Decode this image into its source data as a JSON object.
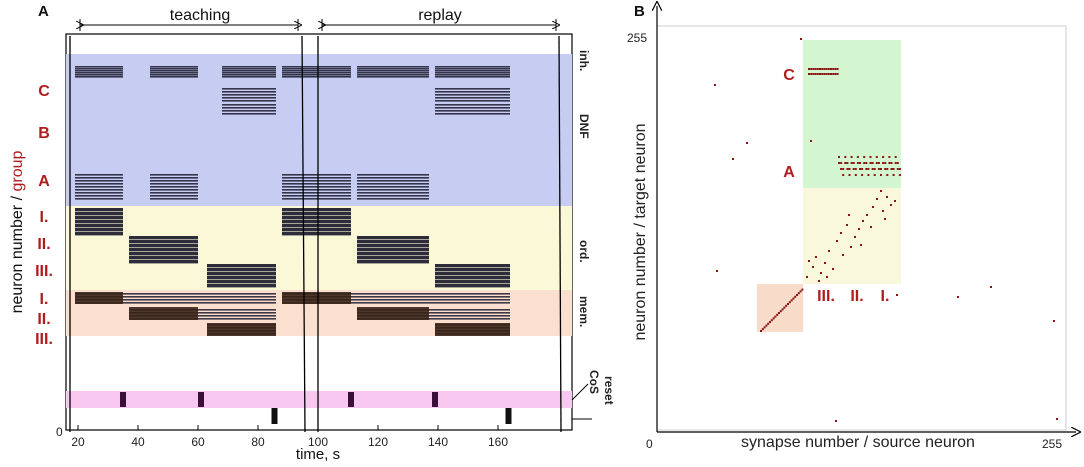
{
  "panel_a": {
    "letter": "A",
    "phase_teaching": "teaching",
    "phase_replay": "replay",
    "ylabel_prefix": "neuron number / ",
    "ylabel_group": "group",
    "xlabel": "time, s",
    "xticks": [
      "20",
      "40",
      "60",
      "80",
      "100",
      "120",
      "140",
      "160"
    ],
    "y_zero": "0",
    "group_labels_left": [
      "C",
      "B",
      "A",
      "I.",
      "II.",
      "III.",
      "I.",
      "II.",
      "III."
    ],
    "region_labels": {
      "inh": "inh.",
      "dnf": "DNF",
      "ord": "ord.",
      "mem": "mem.",
      "cos": "CoS",
      "reset": "reset"
    },
    "colors": {
      "dnf_band": "#c7cdf2",
      "ord_band": "#fbf8d8",
      "mem_band": "#fbe0cf",
      "cos_band": "#f9c8f1",
      "spikes": "#1a1a2e",
      "group_red": "#b01c1c"
    },
    "raster": {
      "type": "raster",
      "x_range": [
        16,
        168
      ],
      "note": "spike blocks as [start_s, end_s] per row group",
      "inh": [
        [
          19,
          35
        ],
        [
          44,
          60
        ],
        [
          68,
          86
        ],
        [
          88,
          111
        ],
        [
          113,
          137
        ],
        [
          139,
          164
        ]
      ],
      "dnf_A": [
        [
          19,
          35
        ],
        [
          44,
          60
        ],
        [
          88,
          111
        ],
        [
          113,
          137
        ]
      ],
      "dnf_C": [
        [
          68,
          86
        ],
        [
          139,
          164
        ]
      ],
      "ord_I": [
        [
          19,
          35
        ],
        [
          88,
          111
        ]
      ],
      "ord_II": [
        [
          37,
          60
        ],
        [
          113,
          137
        ]
      ],
      "ord_III": [
        [
          63,
          86
        ],
        [
          139,
          164
        ]
      ],
      "mem_I": [
        [
          19,
          86
        ],
        [
          88,
          164
        ]
      ],
      "mem_II": [
        [
          37,
          86
        ],
        [
          113,
          164
        ]
      ],
      "mem_III": [
        [
          63,
          86
        ],
        [
          139,
          164
        ]
      ],
      "cos": [
        35,
        61,
        111,
        139
      ],
      "reset": [
        85.5,
        163.5
      ]
    }
  },
  "panel_b": {
    "letter": "B",
    "ylabel": "neuron number / target neuron",
    "xlabel": "synapse number / source neuron",
    "x_ticks": [
      "0",
      "255"
    ],
    "y_tick_top": "255",
    "group_labels": [
      "C",
      "A",
      "III.",
      "II.",
      "I."
    ],
    "colors": {
      "dnf_block": "#d3f5cf",
      "ord_block": "#f9f8dc",
      "mem_block": "#f8dcc9",
      "weights": "#8b1414"
    },
    "weight_matrix": {
      "type": "scatter",
      "x_range": [
        0,
        255
      ],
      "y_range": [
        0,
        255
      ]
    }
  }
}
